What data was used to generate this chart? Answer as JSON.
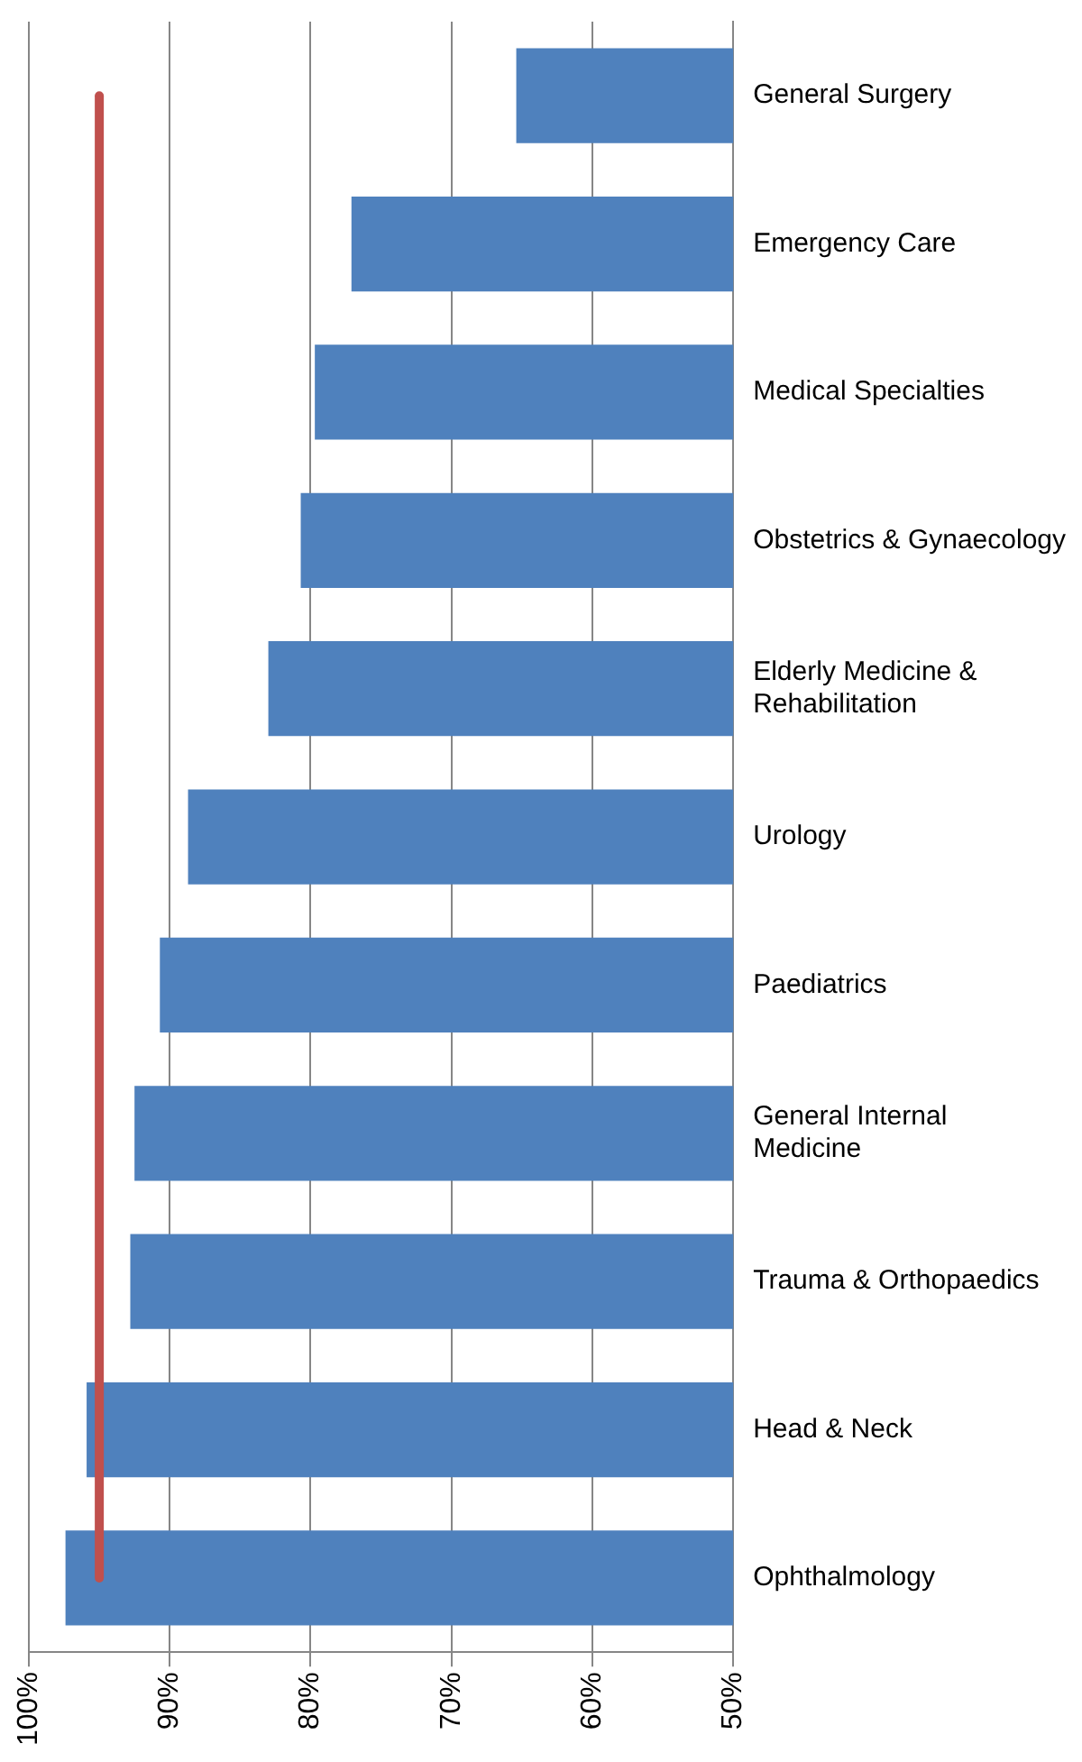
{
  "chart_data": {
    "type": "bar",
    "orientation": "horizontal",
    "categories": [
      "General Surgery",
      "Emergency Care",
      "Medical Specialties",
      "Obstetrics & Gynaecology",
      "Elderly Medicine & Rehabilitation",
      "Urology",
      "Paediatrics",
      "General Internal Medicine",
      "Trauma & Orthopaedics",
      "Head & Neck",
      "Ophthalmology"
    ],
    "values": [
      65.4,
      77.1,
      79.7,
      80.7,
      83,
      88.7,
      90.7,
      92.5,
      92.8,
      95.9,
      97.4
    ],
    "color": "#4f81bd",
    "xlim": [
      100,
      50
    ],
    "xticks": [
      {
        "value": 100,
        "label": "100%"
      },
      {
        "value": 90,
        "label": "90%"
      },
      {
        "value": 80,
        "label": "80%"
      },
      {
        "value": 70,
        "label": "70%"
      },
      {
        "value": 60,
        "label": "60%"
      },
      {
        "value": 50,
        "label": "50%"
      }
    ],
    "ref_lines": [
      {
        "axis": "x",
        "value": 95,
        "color": "#c0504d"
      }
    ],
    "grid": "x",
    "legend": false
  }
}
